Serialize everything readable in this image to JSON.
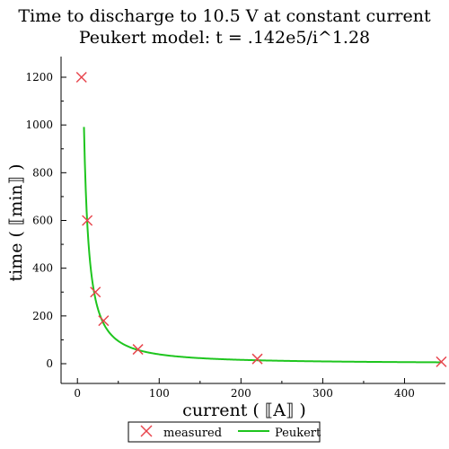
{
  "chart_data": {
    "type": "scatter",
    "title": "Time to discharge to 10.5 V at constant current",
    "subtitle": "Peukert model:  t = .142e5/i^1.28",
    "xlabel": "current ( ⟦A⟧ )",
    "ylabel": "time ( ⟦min⟧ )",
    "xlim": [
      -20,
      450
    ],
    "ylim": [
      0,
      1200
    ],
    "xticks": [
      0,
      100,
      200,
      300,
      400
    ],
    "yticks": [
      0,
      200,
      400,
      600,
      800,
      1000,
      1200
    ],
    "grid": false,
    "legend_position": "bottom",
    "series": [
      {
        "name": "measured",
        "kind": "scatter",
        "marker": "x",
        "color": "#e8454d",
        "x": [
          5,
          12,
          22,
          32,
          74,
          220,
          445
        ],
        "y": [
          1200,
          600,
          300,
          180,
          60,
          20,
          8
        ]
      },
      {
        "name": "Peukert",
        "kind": "line",
        "color": "#1ec51e",
        "model": {
          "a": 14200,
          "b": 1.28
        },
        "x_range": [
          8,
          445
        ]
      }
    ]
  }
}
